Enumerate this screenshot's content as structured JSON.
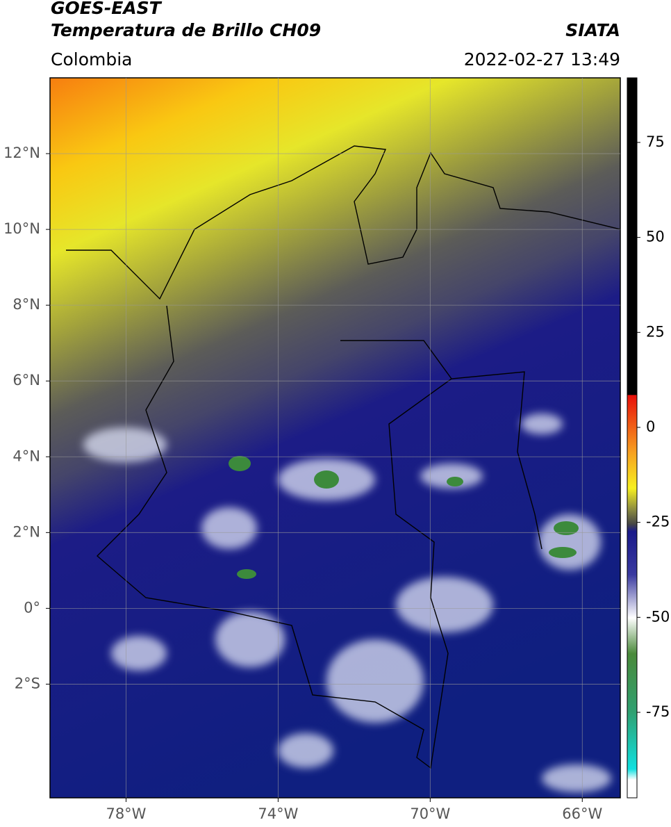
{
  "chart_data": {
    "type": "map",
    "title_lines": [
      "GOES-EAST",
      "Temperatura de Brillo CH09"
    ],
    "subtitle": "Colombia",
    "source": "SIATA",
    "timestamp": "2022-02-27 13:49",
    "xlim": [
      -80,
      -65
    ],
    "ylim": [
      -5,
      14
    ],
    "xticks": [
      {
        "value": -78,
        "label": "78°W"
      },
      {
        "value": -74,
        "label": "74°W"
      },
      {
        "value": -70,
        "label": "70°W"
      },
      {
        "value": -66,
        "label": "66°W"
      }
    ],
    "yticks": [
      {
        "value": -2,
        "label": "2°S"
      },
      {
        "value": 0,
        "label": "0°"
      },
      {
        "value": 2,
        "label": "2°N"
      },
      {
        "value": 4,
        "label": "4°N"
      },
      {
        "value": 6,
        "label": "6°N"
      },
      {
        "value": 8,
        "label": "8°N"
      },
      {
        "value": 10,
        "label": "10°N"
      },
      {
        "value": 12,
        "label": "12°N"
      }
    ],
    "grid": true,
    "colorbar": {
      "clim": [
        -97.5,
        92
      ],
      "ticks": [
        -75,
        -50,
        -25,
        0,
        25,
        50,
        75
      ]
    }
  }
}
